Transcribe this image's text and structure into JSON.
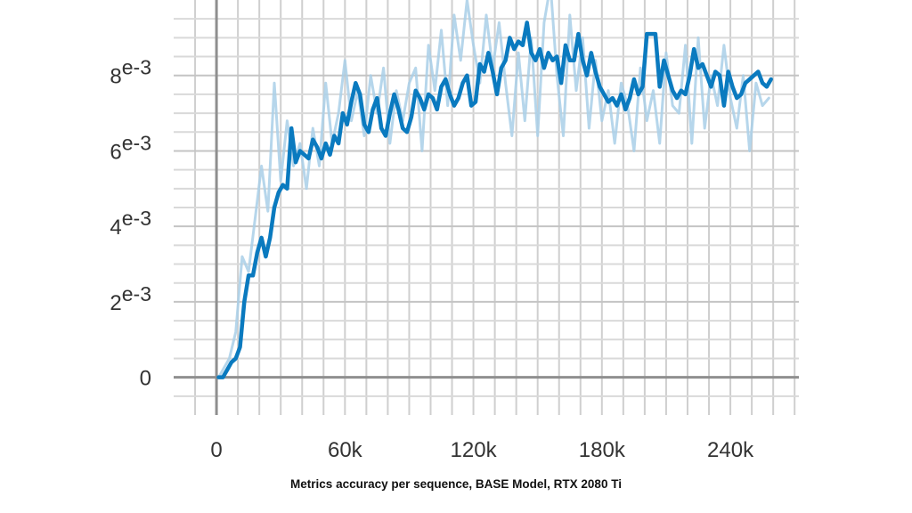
{
  "caption": "Metrics accuracy per sequence, BASE Model, RTX 2080 Ti",
  "chart_data": {
    "type": "line",
    "title": "",
    "xlabel": "",
    "ylabel": "",
    "xlim": [
      -20000,
      272000
    ],
    "ylim": [
      -0.001,
      0.01
    ],
    "grid": true,
    "x_ticks": [
      {
        "value": 0,
        "label": "0"
      },
      {
        "value": 60000,
        "label": "60k"
      },
      {
        "value": 120000,
        "label": "120k"
      },
      {
        "value": 180000,
        "label": "180k"
      },
      {
        "value": 240000,
        "label": "240k"
      }
    ],
    "y_ticks": [
      {
        "value": 0,
        "base": "0",
        "exp": ""
      },
      {
        "value": 0.002,
        "base": "2",
        "exp": "e-3"
      },
      {
        "value": 0.004,
        "base": "4",
        "exp": "e-3"
      },
      {
        "value": 0.006,
        "base": "6",
        "exp": "e-3"
      },
      {
        "value": 0.008,
        "base": "8",
        "exp": "e-3"
      }
    ],
    "colors": {
      "smoothed": "#0a7abf",
      "raw": "#a9cfe8",
      "grid": "#cfcfcf",
      "axis": "#8f8f8f"
    },
    "series": [
      {
        "role": "raw",
        "x": [
          1000,
          6000,
          9000,
          12000,
          15000,
          18000,
          21000,
          24000,
          27000,
          30000,
          33000,
          36000,
          39000,
          42000,
          45000,
          48000,
          51000,
          54000,
          57000,
          60000,
          63000,
          66000,
          69000,
          72000,
          75000,
          78000,
          81000,
          84000,
          87000,
          90000,
          93000,
          96000,
          99000,
          102000,
          105000,
          108000,
          111000,
          114000,
          117000,
          120000,
          123000,
          126000,
          129000,
          132000,
          135000,
          138000,
          141000,
          144000,
          147000,
          150000,
          153000,
          156000,
          159000,
          162000,
          165000,
          168000,
          171000,
          174000,
          177000,
          180000,
          183000,
          186000,
          189000,
          192000,
          195000,
          198000,
          201000,
          204000,
          207000,
          210000,
          213000,
          216000,
          219000,
          222000,
          225000,
          228000,
          231000,
          234000,
          237000,
          240000,
          243000,
          246000,
          249000,
          252000,
          255000,
          258000
        ],
        "y": [
          0,
          0.0005,
          0.0012,
          0.0032,
          0.0028,
          0.0042,
          0.0056,
          0.0044,
          0.0078,
          0.0052,
          0.0068,
          0.0056,
          0.0062,
          0.005,
          0.0066,
          0.0056,
          0.0078,
          0.0062,
          0.007,
          0.0084,
          0.0068,
          0.0076,
          0.0064,
          0.008,
          0.007,
          0.0082,
          0.0062,
          0.0076,
          0.0068,
          0.0078,
          0.0082,
          0.006,
          0.0088,
          0.0076,
          0.0092,
          0.0072,
          0.0096,
          0.0084,
          0.01,
          0.0088,
          0.0078,
          0.0096,
          0.0082,
          0.0094,
          0.0078,
          0.0064,
          0.0086,
          0.0068,
          0.009,
          0.0064,
          0.0094,
          0.0104,
          0.008,
          0.0064,
          0.0096,
          0.0076,
          0.009,
          0.0066,
          0.0084,
          0.0068,
          0.0076,
          0.0062,
          0.0078,
          0.0072,
          0.006,
          0.0082,
          0.0068,
          0.0076,
          0.0062,
          0.0086,
          0.0072,
          0.007,
          0.0088,
          0.0062,
          0.009,
          0.0066,
          0.008,
          0.0072,
          0.0088,
          0.0074,
          0.0066,
          0.008,
          0.006,
          0.0078,
          0.0072,
          0.0074
        ]
      },
      {
        "role": "smoothed",
        "x": [
          1000,
          3000,
          5000,
          7000,
          9000,
          11000,
          13000,
          15000,
          17000,
          19000,
          21000,
          23000,
          25000,
          27000,
          29000,
          31000,
          33000,
          35000,
          37000,
          39000,
          41000,
          43000,
          45000,
          47000,
          49000,
          51000,
          53000,
          55000,
          57000,
          59000,
          61000,
          63000,
          65000,
          67000,
          69000,
          71000,
          73000,
          75000,
          77000,
          79000,
          81000,
          83000,
          85000,
          87000,
          89000,
          91000,
          93000,
          95000,
          97000,
          99000,
          101000,
          103000,
          105000,
          107000,
          109000,
          111000,
          113000,
          115000,
          117000,
          119000,
          121000,
          123000,
          125000,
          127000,
          129000,
          131000,
          133000,
          135000,
          137000,
          139000,
          141000,
          143000,
          145000,
          147000,
          149000,
          151000,
          153000,
          155000,
          157000,
          159000,
          161000,
          163000,
          165000,
          167000,
          169000,
          171000,
          173000,
          175000,
          177000,
          179000,
          181000,
          183000,
          185000,
          187000,
          189000,
          191000,
          193000,
          195000,
          197000,
          199000,
          201000,
          203000,
          205000,
          207000,
          209000,
          211000,
          213000,
          215000,
          217000,
          219000,
          221000,
          223000,
          225000,
          227000,
          229000,
          231000,
          233000,
          235000,
          237000,
          239000,
          241000,
          243000,
          245000,
          247000,
          249000,
          251000,
          253000,
          255000,
          257000,
          259000
        ],
        "y": [
          0,
          0,
          0.0002,
          0.0004,
          0.0005,
          0.0008,
          0.002,
          0.0027,
          0.0027,
          0.0033,
          0.0037,
          0.0032,
          0.0037,
          0.0045,
          0.0049,
          0.0051,
          0.005,
          0.0066,
          0.0057,
          0.006,
          0.0059,
          0.0058,
          0.0063,
          0.0061,
          0.0058,
          0.0062,
          0.0059,
          0.0064,
          0.0062,
          0.007,
          0.0067,
          0.0073,
          0.0078,
          0.0075,
          0.0067,
          0.0065,
          0.0071,
          0.0074,
          0.0066,
          0.0064,
          0.007,
          0.0075,
          0.0071,
          0.0066,
          0.0065,
          0.0069,
          0.0076,
          0.0074,
          0.0071,
          0.0075,
          0.0074,
          0.0071,
          0.0077,
          0.0079,
          0.0075,
          0.0072,
          0.0074,
          0.0078,
          0.008,
          0.0072,
          0.0073,
          0.0083,
          0.0081,
          0.0086,
          0.0081,
          0.0075,
          0.0082,
          0.0084,
          0.009,
          0.0087,
          0.0089,
          0.0088,
          0.0094,
          0.0086,
          0.0084,
          0.0087,
          0.0082,
          0.0086,
          0.0084,
          0.0085,
          0.0078,
          0.0088,
          0.0084,
          0.0084,
          0.0091,
          0.0084,
          0.008,
          0.0086,
          0.0081,
          0.0077,
          0.0075,
          0.0073,
          0.0074,
          0.0072,
          0.0075,
          0.0071,
          0.0074,
          0.0079,
          0.0075,
          0.0077,
          0.0091,
          0.0091,
          0.0091,
          0.0077,
          0.0084,
          0.008,
          0.0076,
          0.0074,
          0.0076,
          0.0075,
          0.008,
          0.0087,
          0.0082,
          0.0083,
          0.008,
          0.0077,
          0.0081,
          0.008,
          0.0072,
          0.0081,
          0.0077,
          0.0074,
          0.0075,
          0.0078,
          0.0079,
          0.008,
          0.0081,
          0.0078,
          0.0077,
          0.0079
        ]
      }
    ]
  }
}
